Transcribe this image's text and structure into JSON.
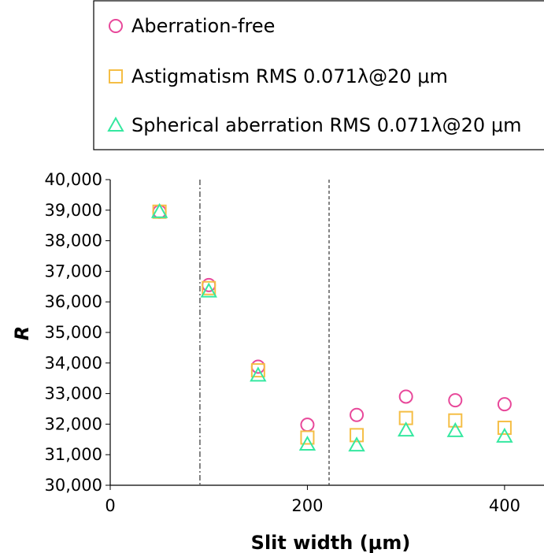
{
  "chart_data": {
    "type": "scatter",
    "xlabel": "Slit width (μm)",
    "ylabel": "R",
    "xlim": [
      0,
      440
    ],
    "ylim": [
      30000,
      40000
    ],
    "x_ticks": [
      0,
      200,
      400
    ],
    "x_tick_labels": [
      "0",
      "200",
      "400"
    ],
    "y_ticks": [
      30000,
      31000,
      32000,
      33000,
      34000,
      35000,
      36000,
      37000,
      38000,
      39000,
      40000
    ],
    "y_tick_labels": [
      "30,000",
      "31,000",
      "32,000",
      "33,000",
      "34,000",
      "35,000",
      "36,000",
      "37,000",
      "38,000",
      "39,000",
      "40,000"
    ],
    "grid": false,
    "legend_position": "top",
    "vertical_lines": [
      {
        "x": 91,
        "style": "dash-dot"
      },
      {
        "x": 222,
        "style": "dashed"
      }
    ],
    "series": [
      {
        "name": "Aberration-free",
        "marker": "circle",
        "color": "#e8489a",
        "x": [
          50,
          100,
          150,
          200,
          250,
          300,
          350,
          400
        ],
        "y": [
          38950,
          36550,
          33880,
          31980,
          32300,
          32900,
          32780,
          32650
        ]
      },
      {
        "name": "Astigmatism RMS 0.071λ@20 μm",
        "marker": "square",
        "color": "#f5be45",
        "x": [
          50,
          100,
          150,
          200,
          250,
          300,
          350,
          400
        ],
        "y": [
          38950,
          36450,
          33760,
          31560,
          31640,
          32200,
          32120,
          31880
        ]
      },
      {
        "name": "Spherical aberration RMS 0.071λ@20 μm",
        "marker": "triangle",
        "color": "#35e8a0",
        "x": [
          50,
          100,
          150,
          200,
          250,
          300,
          350,
          400
        ],
        "y": [
          38950,
          36350,
          33600,
          31340,
          31310,
          31800,
          31780,
          31600
        ]
      }
    ]
  }
}
